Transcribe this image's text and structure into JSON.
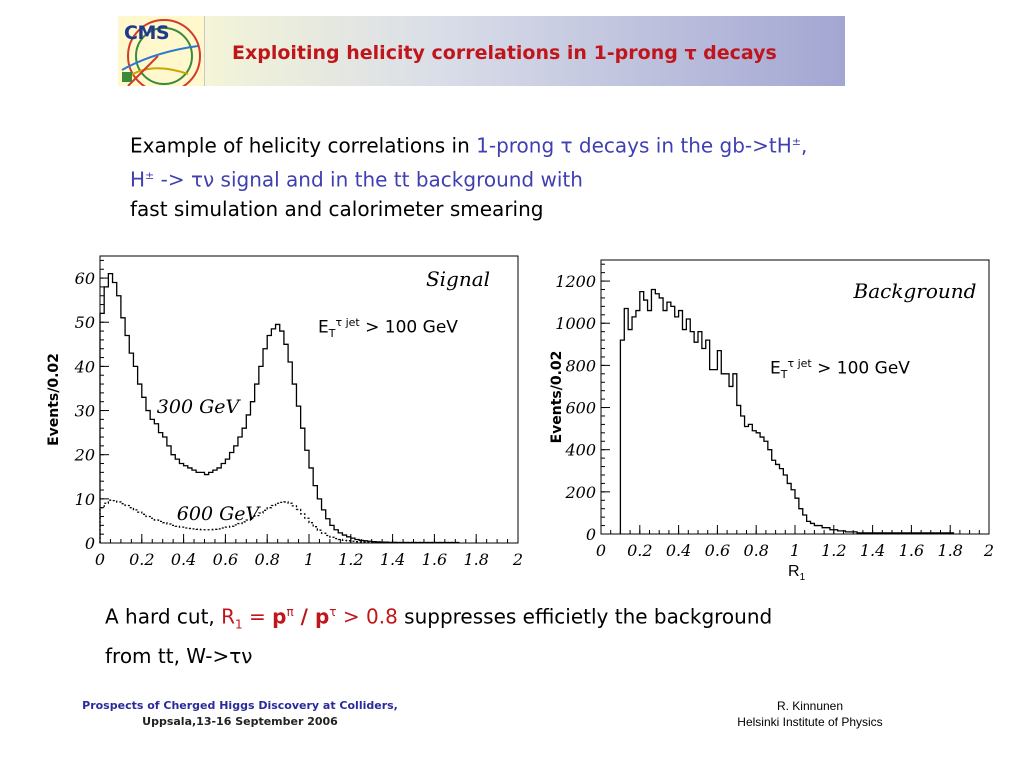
{
  "header": {
    "logo_text": "CMS",
    "title": "Exploiting helicity correlations in 1-prong τ decays"
  },
  "intro": {
    "p1": "Example of helicity correlations in ",
    "p2": "1-prong τ decays in the gb->tH",
    "p3": ", H",
    "p4": " -> τν signal and in the tt background with",
    "p5": "fast simulation and calorimeter  smearing",
    "pm": "±"
  },
  "annotation": {
    "et": "E",
    "t_sub": "T",
    "tau_sup": "τ  jet",
    "cut": " > 100 GeV"
  },
  "conclusion": {
    "c1": "A hard cut,  ",
    "r": "R",
    "one": "1",
    "eq": " = ",
    "p": "p",
    "pi": "π",
    "slash": " / ",
    "tau": "τ",
    "gt": " > 0.8",
    "c2": " suppresses efficietly the background",
    "c3": "from tt, W->",
    "tn": "τν"
  },
  "r1_label": {
    "r": "R",
    "sub": "1"
  },
  "footer": {
    "left1": "Prospects of Cherged Higgs Discovery at Colliders,",
    "left2": "Uppsala,13-16 September 2006",
    "right1": "R. Kinnunen",
    "right2": "Helsinki Institute of Physics"
  },
  "chart_data": [
    {
      "type": "line",
      "title": "Signal",
      "xlabel": "",
      "ylabel": "Events/0.02",
      "xlim": [
        0,
        2
      ],
      "ylim": [
        0,
        65
      ],
      "xticks": [
        "0",
        "0.2",
        "0.4",
        "0.6",
        "0.8",
        "1",
        "1.2",
        "1.4",
        "1.6",
        "1.8",
        "2"
      ],
      "yticks": [
        "0",
        "10",
        "20",
        "30",
        "40",
        "50",
        "60"
      ],
      "series": [
        {
          "name": "300 GeV",
          "x": [
            0.0,
            0.02,
            0.04,
            0.06,
            0.08,
            0.1,
            0.12,
            0.14,
            0.16,
            0.18,
            0.2,
            0.22,
            0.24,
            0.26,
            0.28,
            0.3,
            0.32,
            0.34,
            0.36,
            0.38,
            0.4,
            0.42,
            0.44,
            0.46,
            0.48,
            0.5,
            0.52,
            0.54,
            0.56,
            0.58,
            0.6,
            0.62,
            0.64,
            0.66,
            0.68,
            0.7,
            0.72,
            0.74,
            0.76,
            0.78,
            0.8,
            0.82,
            0.84,
            0.86,
            0.88,
            0.9,
            0.92,
            0.94,
            0.96,
            0.98,
            1.0,
            1.02,
            1.04,
            1.06,
            1.08,
            1.1,
            1.12,
            1.14,
            1.16,
            1.18,
            1.2,
            1.22,
            1.24,
            1.26,
            1.28,
            1.3,
            1.32,
            1.34,
            1.36,
            1.38,
            1.4,
            1.42,
            1.44,
            1.46,
            1.48,
            1.5,
            1.52,
            1.54,
            1.56,
            1.58,
            1.6,
            1.62,
            1.64,
            1.66,
            1.68,
            1.7
          ],
          "values": [
            52,
            58,
            61,
            59,
            56,
            51,
            47,
            43,
            40,
            36,
            33,
            30,
            28,
            27,
            25,
            24,
            22,
            20,
            19,
            18,
            17.5,
            17,
            16.5,
            16,
            16,
            15.5,
            16,
            16.5,
            17,
            18,
            19,
            20.5,
            22,
            24,
            26,
            29,
            32,
            36,
            40,
            44,
            47,
            48.5,
            49.5,
            48,
            45,
            41,
            36,
            31,
            26,
            21,
            17,
            13,
            10,
            7.5,
            5.5,
            4,
            3,
            2.3,
            1.8,
            1.4,
            1.1,
            0.8,
            0.6,
            0.5,
            0.4,
            0.3,
            0.25,
            0.2,
            0.2,
            0.15,
            0.15,
            0.1,
            0.1,
            0.1,
            0.1,
            0.1,
            0.1,
            0.1,
            0.1,
            0.1,
            0.1,
            0.1,
            0.1,
            0.1,
            0.1,
            0.1
          ]
        },
        {
          "name": "600 GeV",
          "x": [
            0.0,
            0.02,
            0.04,
            0.06,
            0.08,
            0.1,
            0.12,
            0.14,
            0.16,
            0.18,
            0.2,
            0.22,
            0.24,
            0.26,
            0.28,
            0.3,
            0.32,
            0.34,
            0.36,
            0.38,
            0.4,
            0.42,
            0.44,
            0.46,
            0.48,
            0.5,
            0.52,
            0.54,
            0.56,
            0.58,
            0.6,
            0.62,
            0.64,
            0.66,
            0.68,
            0.7,
            0.72,
            0.74,
            0.76,
            0.78,
            0.8,
            0.82,
            0.84,
            0.86,
            0.88,
            0.9,
            0.92,
            0.94,
            0.96,
            0.98,
            1.0,
            1.02,
            1.04,
            1.06,
            1.08,
            1.1,
            1.12,
            1.14,
            1.16,
            1.18,
            1.2,
            1.22,
            1.24,
            1.26,
            1.28,
            1.3,
            1.32,
            1.34,
            1.36,
            1.38,
            1.4,
            1.42,
            1.44,
            1.46,
            1.48,
            1.5,
            1.52,
            1.54,
            1.56,
            1.58,
            1.6,
            1.62,
            1.64,
            1.66,
            1.68,
            1.7
          ],
          "values": [
            8,
            9,
            9.7,
            9.6,
            9.3,
            8.9,
            8.5,
            8,
            7.5,
            7,
            6.5,
            6,
            5.6,
            5.2,
            4.9,
            4.6,
            4.3,
            4,
            3.8,
            3.6,
            3.4,
            3.3,
            3.2,
            3.1,
            3.0,
            3.0,
            3.0,
            3.1,
            3.2,
            3.4,
            3.6,
            3.8,
            4.1,
            4.4,
            4.8,
            5.2,
            5.7,
            6.2,
            6.8,
            7.4,
            8,
            8.5,
            9,
            9.2,
            9.3,
            9,
            8.4,
            7.6,
            6.6,
            5.6,
            4.6,
            3.7,
            2.9,
            2.2,
            1.7,
            1.3,
            1,
            0.8,
            0.6,
            0.5,
            0.4,
            0.3,
            0.25,
            0.2,
            0.15,
            0.1,
            0.1,
            0.1,
            0.1,
            0.1,
            0.1,
            0.1,
            0.1,
            0.1,
            0.1,
            0.1,
            0.1,
            0.1,
            0.1,
            0.1,
            0.1,
            0.1,
            0.1,
            0.1,
            0.1,
            0.1
          ]
        }
      ]
    },
    {
      "type": "line",
      "title": "Background",
      "xlabel": "R1",
      "ylabel": "Events/0.02",
      "xlim": [
        0,
        2
      ],
      "ylim": [
        0,
        1300
      ],
      "xticks": [
        "0",
        "0.2",
        "0.4",
        "0.6",
        "0.8",
        "1",
        "1.2",
        "1.4",
        "1.6",
        "1.8",
        "2"
      ],
      "yticks": [
        "0",
        "200",
        "400",
        "600",
        "800",
        "1000",
        "1200"
      ],
      "series": [
        {
          "name": "",
          "x": [
            0.1,
            0.12,
            0.14,
            0.16,
            0.18,
            0.2,
            0.22,
            0.24,
            0.26,
            0.28,
            0.3,
            0.32,
            0.34,
            0.36,
            0.38,
            0.4,
            0.42,
            0.44,
            0.46,
            0.48,
            0.5,
            0.52,
            0.54,
            0.56,
            0.58,
            0.6,
            0.62,
            0.64,
            0.66,
            0.68,
            0.7,
            0.72,
            0.74,
            0.76,
            0.78,
            0.8,
            0.82,
            0.84,
            0.86,
            0.88,
            0.9,
            0.92,
            0.94,
            0.96,
            0.98,
            1.0,
            1.02,
            1.04,
            1.06,
            1.08,
            1.1,
            1.12,
            1.14,
            1.16,
            1.18,
            1.2,
            1.22,
            1.24,
            1.26,
            1.28,
            1.3,
            1.32,
            1.34,
            1.36,
            1.38,
            1.4,
            1.42,
            1.44,
            1.46,
            1.48,
            1.5,
            1.52,
            1.54,
            1.56,
            1.58,
            1.6,
            1.62,
            1.64,
            1.66,
            1.68,
            1.7,
            1.72,
            1.74,
            1.76,
            1.78,
            1.8
          ],
          "values": [
            920,
            1070,
            970,
            1030,
            1060,
            1150,
            1110,
            1060,
            1160,
            1140,
            1120,
            1060,
            1100,
            1080,
            1030,
            1060,
            970,
            1020,
            960,
            910,
            960,
            880,
            920,
            780,
            780,
            870,
            760,
            760,
            700,
            760,
            610,
            560,
            510,
            520,
            490,
            480,
            460,
            440,
            400,
            350,
            330,
            310,
            280,
            240,
            210,
            170,
            120,
            90,
            60,
            50,
            40,
            40,
            30,
            30,
            20,
            20,
            15,
            15,
            10,
            10,
            10,
            5,
            5,
            5,
            5,
            5,
            5,
            5,
            5,
            5,
            5,
            5,
            5,
            5,
            5,
            5,
            5,
            5,
            5,
            5,
            5,
            5,
            5,
            5,
            5,
            5
          ]
        }
      ]
    }
  ]
}
